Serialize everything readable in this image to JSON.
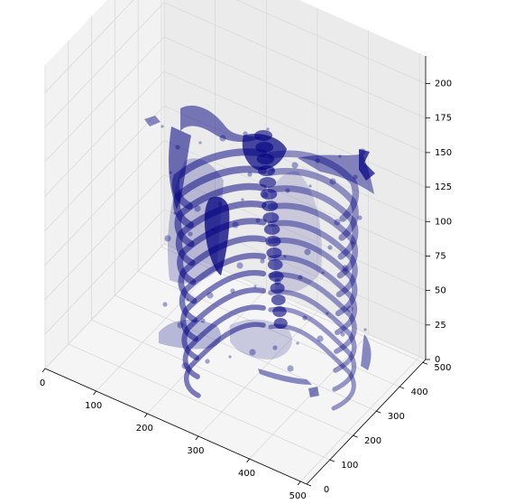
{
  "chart_data": {
    "type": "surface3d",
    "title": "",
    "xlabel": "",
    "ylabel": "",
    "zlabel": "",
    "grid": true,
    "colors": {
      "surface": "#000080",
      "pane_left": "#f2f2f2",
      "pane_back": "#ebebeb",
      "pane_floor": "#f5f5f5",
      "grid": "#d9d9d9",
      "axis": "#000000"
    },
    "x_axis": {
      "range": [
        0,
        512
      ],
      "ticks": [
        0,
        100,
        200,
        300,
        400,
        500
      ],
      "tick_labels": [
        "0",
        "100",
        "200",
        "300",
        "400",
        "500"
      ]
    },
    "y_axis": {
      "range": [
        0,
        512
      ],
      "ticks": [
        0,
        100,
        200,
        300,
        400,
        500
      ],
      "tick_labels": [
        "0",
        "100",
        "200",
        "300",
        "400",
        "500"
      ]
    },
    "z_axis": {
      "range": [
        0,
        220
      ],
      "ticks": [
        0,
        25,
        50,
        75,
        100,
        125,
        150,
        175,
        200
      ],
      "tick_labels": [
        "0",
        "25",
        "50",
        "75",
        "100",
        "125",
        "150",
        "175",
        "200"
      ]
    },
    "series": [
      {
        "subject": "rib cage / chest CT volume rendering",
        "opacity": 0.4
      }
    ]
  }
}
